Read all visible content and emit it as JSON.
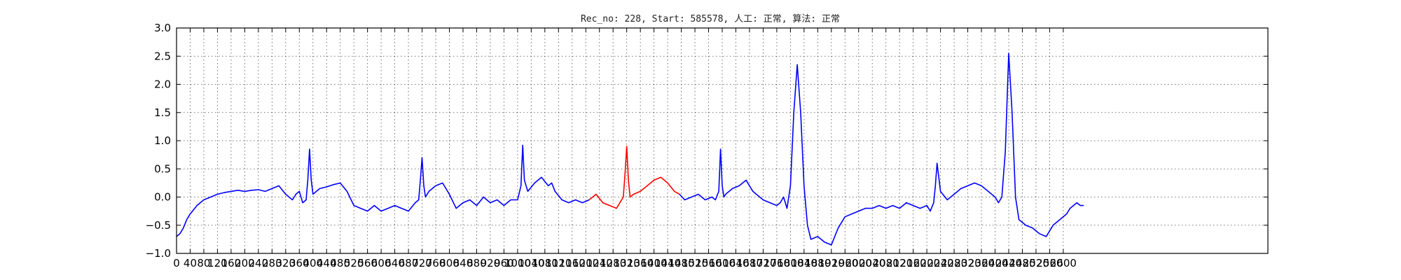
{
  "chart_data": {
    "type": "line",
    "title": "Rec_no: 228, Start: 585578, 人工: 正常, 算法: 正常",
    "xlabel": "",
    "ylabel": "",
    "xlim": [
      0,
      3200
    ],
    "ylim": [
      -1.0,
      3.0
    ],
    "grid": true,
    "x_ticks": [
      0,
      40,
      80,
      120,
      160,
      200,
      240,
      280,
      320,
      360,
      400,
      440,
      480,
      520,
      560,
      600,
      640,
      680,
      720,
      760,
      800,
      840,
      880,
      920,
      960,
      1000,
      1040,
      1080,
      1120,
      1160,
      1200,
      1240,
      1280,
      1320,
      1360,
      1400,
      1440,
      1480,
      1520,
      1560,
      1600,
      1640,
      1680,
      1720,
      1760,
      1800,
      1840,
      1880,
      1920,
      1960,
      2000,
      2040,
      2080,
      2120,
      2160,
      2200,
      2240,
      2280,
      2320,
      2360,
      2400,
      2440,
      2480,
      2520,
      2560,
      2600
    ],
    "x_tick_labels": [
      "0",
      "40",
      "80",
      "120",
      "160",
      "200",
      "240",
      "280",
      "320",
      "360",
      "400",
      "440",
      "480",
      "520",
      "560",
      "600",
      "640",
      "680",
      "720",
      "760",
      "800",
      "840",
      "880",
      "920",
      "960",
      "1000",
      "1040",
      "1080",
      "1120",
      "1160",
      "1200",
      "1240",
      "1280",
      "1320",
      "1360",
      "1400",
      "1440",
      "1480",
      "1520",
      "1560",
      "1600",
      "1640",
      "1680",
      "1720",
      "1760",
      "1800",
      "1840",
      "1880",
      "1920",
      "1960",
      "2000",
      "2040",
      "2080",
      "2120",
      "2160",
      "2200",
      "2240",
      "2280",
      "2320",
      "2360",
      "2400",
      "2440",
      "2480",
      "2520",
      "2560",
      "2600"
    ],
    "y_ticks": [
      -1.0,
      -0.5,
      0.0,
      0.5,
      1.0,
      1.5,
      2.0,
      2.5,
      3.0
    ],
    "y_tick_labels": [
      "−1.0",
      "−0.5",
      "0.0",
      "0.5",
      "1.0",
      "1.5",
      "2.0",
      "2.5",
      "3.0"
    ],
    "series": [
      {
        "color": "#0000ff",
        "x": [
          0,
          10,
          20,
          30,
          40,
          60,
          80,
          100,
          120,
          140,
          160,
          180,
          200,
          220,
          240,
          260,
          280,
          300,
          320,
          330,
          340,
          350,
          360,
          370,
          380,
          385,
          390,
          395,
          400,
          410,
          420,
          440,
          460,
          480,
          500,
          520,
          540,
          560,
          580,
          600,
          620,
          640,
          660,
          680,
          700,
          710,
          715,
          720,
          725,
          730,
          740,
          760,
          780,
          800,
          820,
          840,
          860,
          880,
          900,
          920,
          940,
          960,
          980,
          1000,
          1010,
          1015,
          1020,
          1025,
          1030,
          1050,
          1070,
          1090,
          1100,
          1110,
          1130,
          1150,
          1170,
          1190,
          1210
        ],
        "y": [
          -0.7,
          -0.65,
          -0.55,
          -0.4,
          -0.3,
          -0.15,
          -0.05,
          0.0,
          0.05,
          0.08,
          0.1,
          0.12,
          0.1,
          0.12,
          0.13,
          0.1,
          0.15,
          0.2,
          0.05,
          0.0,
          -0.05,
          0.05,
          0.1,
          -0.1,
          -0.05,
          0.3,
          0.85,
          0.3,
          0.05,
          0.1,
          0.15,
          0.18,
          0.22,
          0.25,
          0.1,
          -0.15,
          -0.2,
          -0.25,
          -0.15,
          -0.25,
          -0.2,
          -0.15,
          -0.2,
          -0.25,
          -0.1,
          -0.05,
          0.3,
          0.7,
          0.2,
          0.0,
          0.1,
          0.2,
          0.25,
          0.05,
          -0.2,
          -0.1,
          -0.05,
          -0.15,
          0.0,
          -0.1,
          -0.05,
          -0.15,
          -0.05,
          -0.05,
          0.2,
          0.92,
          0.3,
          0.2,
          0.1,
          0.25,
          0.35,
          0.2,
          0.25,
          0.1,
          -0.05,
          -0.1,
          -0.05,
          -0.1,
          -0.05
        ]
      },
      {
        "color": "#ff0000",
        "x": [
          1210,
          1230,
          1250,
          1270,
          1290,
          1300,
          1310,
          1315,
          1320,
          1325,
          1330,
          1340,
          1360,
          1380,
          1400,
          1420,
          1440,
          1460,
          1475
        ],
        "y": [
          -0.05,
          0.05,
          -0.1,
          -0.15,
          -0.2,
          -0.1,
          0.0,
          0.4,
          0.9,
          0.3,
          0.0,
          0.05,
          0.1,
          0.2,
          0.3,
          0.35,
          0.25,
          0.1,
          0.05
        ]
      },
      {
        "color": "#0000ff",
        "x": [
          1475,
          1490,
          1510,
          1530,
          1550,
          1570,
          1580,
          1590,
          1595,
          1600,
          1605,
          1610,
          1630,
          1650,
          1670,
          1690,
          1700,
          1720,
          1740,
          1760,
          1770,
          1780,
          1790,
          1800,
          1810,
          1820,
          1830,
          1840,
          1850,
          1860,
          1880,
          1900,
          1920,
          1940,
          1960,
          1980,
          2000,
          2020,
          2040,
          2060,
          2080,
          2100,
          2120,
          2140,
          2160,
          2180,
          2200,
          2210,
          2220,
          2225,
          2230,
          2240,
          2260,
          2280,
          2300,
          2320,
          2340,
          2360,
          2380,
          2400,
          2410,
          2420,
          2430,
          2440,
          2450,
          2460,
          2470,
          2490,
          2510,
          2530,
          2550,
          2570,
          2590,
          2610,
          2620,
          2630,
          2640,
          2650,
          2660
        ],
        "y": [
          0.05,
          -0.05,
          0.0,
          0.05,
          -0.05,
          0.0,
          -0.05,
          0.1,
          0.85,
          0.2,
          0.0,
          0.05,
          0.15,
          0.2,
          0.3,
          0.1,
          0.05,
          -0.05,
          -0.1,
          -0.15,
          -0.1,
          0.0,
          -0.2,
          0.2,
          1.5,
          2.35,
          1.5,
          0.2,
          -0.5,
          -0.75,
          -0.7,
          -0.8,
          -0.85,
          -0.55,
          -0.35,
          -0.3,
          -0.25,
          -0.2,
          -0.2,
          -0.15,
          -0.2,
          -0.15,
          -0.2,
          -0.1,
          -0.15,
          -0.2,
          -0.15,
          -0.25,
          -0.1,
          0.2,
          0.6,
          0.1,
          -0.05,
          0.05,
          0.15,
          0.2,
          0.25,
          0.2,
          0.1,
          0.0,
          -0.1,
          0.0,
          0.8,
          2.55,
          1.5,
          0.0,
          -0.4,
          -0.5,
          -0.55,
          -0.65,
          -0.7,
          -0.5,
          -0.4,
          -0.3,
          -0.2,
          -0.15,
          -0.1,
          -0.15,
          -0.15
        ]
      }
    ]
  }
}
